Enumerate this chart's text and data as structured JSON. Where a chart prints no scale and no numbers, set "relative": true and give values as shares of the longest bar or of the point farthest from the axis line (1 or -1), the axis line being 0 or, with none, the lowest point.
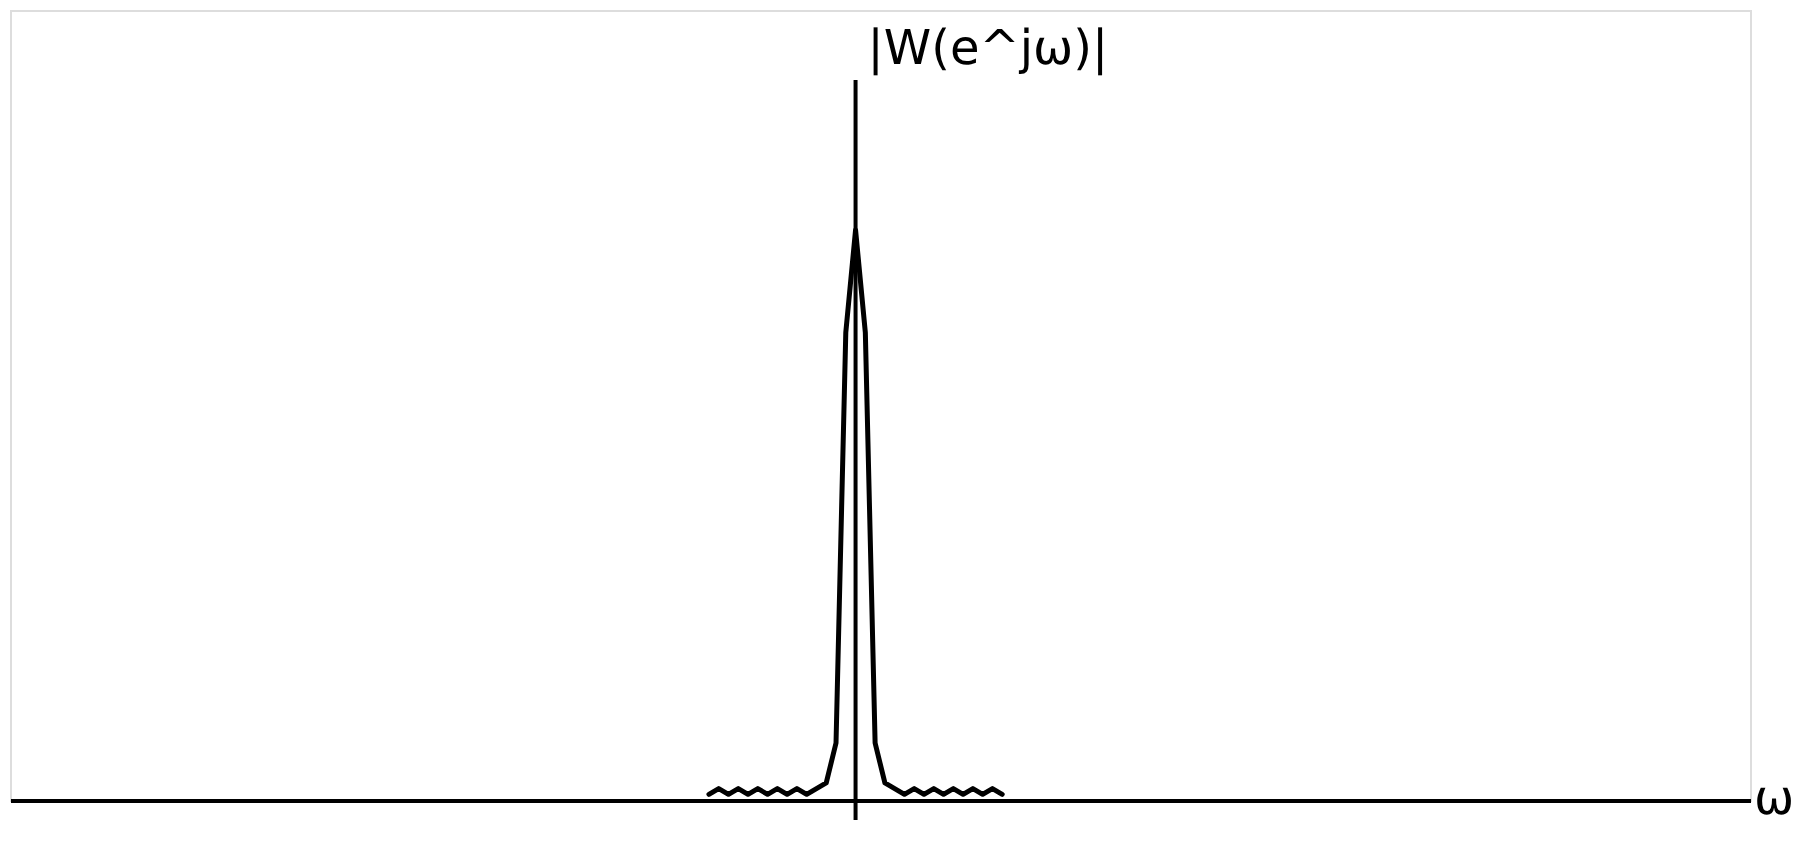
{
  "chart_data": {
    "type": "line",
    "relative": true,
    "xlabel": "ω",
    "ylabel": "|W(e^jω)|",
    "grid": false,
    "marker": "none",
    "line_style": "solid",
    "categories": [
      null,
      null,
      null,
      null,
      null,
      null,
      null,
      null,
      null,
      null,
      null,
      null,
      null,
      null,
      null,
      null,
      null,
      null,
      null,
      null,
      null,
      null,
      null,
      null,
      null,
      null,
      null,
      null,
      null,
      null,
      null,
      null,
      null,
      null,
      null,
      null,
      null,
      null,
      null,
      null,
      null,
      null,
      null,
      null,
      null,
      null,
      null,
      null,
      null,
      null,
      null,
      null,
      null,
      null,
      null,
      null,
      null,
      null,
      null,
      null,
      null,
      null,
      null,
      null,
      null,
      null,
      null,
      null,
      null,
      null,
      null,
      null,
      null,
      null,
      null,
      null,
      null,
      null,
      null,
      null,
      null,
      null,
      null,
      null,
      null,
      null,
      null,
      null,
      null,
      null,
      null,
      null,
      null,
      null,
      null,
      null,
      null,
      null,
      null,
      null,
      null,
      null,
      null,
      null,
      null,
      null,
      null,
      null,
      null,
      null,
      null,
      null,
      null,
      null,
      null,
      null,
      null,
      null,
      null,
      null,
      null,
      null,
      null,
      null,
      null,
      null,
      null,
      null,
      null,
      null,
      null,
      null,
      null,
      null,
      null,
      null,
      null,
      null,
      null,
      null,
      null,
      null,
      null,
      null,
      null,
      null,
      null,
      null,
      null,
      null,
      null,
      null,
      null,
      null,
      null,
      null,
      null,
      null,
      null,
      null,
      null,
      null,
      null,
      null,
      null,
      null,
      null,
      null,
      null,
      null,
      null,
      null,
      null,
      null,
      null,
      null,
      null,
      null
    ],
    "series": [
      {
        "color": "#000000",
        "values": [
          null,
          null,
          null,
          null,
          null,
          null,
          null,
          null,
          null,
          null,
          null,
          null,
          null,
          null,
          null,
          null,
          null,
          null,
          null,
          null,
          null,
          null,
          null,
          null,
          null,
          null,
          null,
          null,
          null,
          null,
          null,
          null,
          null,
          null,
          null,
          null,
          null,
          null,
          null,
          null,
          null,
          null,
          null,
          null,
          null,
          null,
          null,
          null,
          null,
          null,
          null,
          null,
          null,
          null,
          null,
          null,
          null,
          null,
          null,
          null,
          null,
          null,
          null,
          null,
          null,
          null,
          null,
          null,
          null,
          null,
          null,
          0.01,
          0.02,
          0.01,
          0.02,
          0.01,
          0.02,
          0.01,
          0.02,
          0.01,
          0.02,
          0.01,
          0.02,
          0.03,
          0.1,
          0.82,
          1,
          0.82,
          0.1,
          0.03,
          0.02,
          0.01,
          0.02,
          0.01,
          0.02,
          0.01,
          0.02,
          0.01,
          0.02,
          0.01,
          0.02,
          0.01,
          null,
          null,
          null,
          null,
          null,
          null,
          null,
          null,
          null,
          null,
          null,
          null,
          null,
          null,
          null,
          null,
          null,
          null,
          null,
          null,
          null,
          null,
          null,
          null,
          null,
          null,
          null,
          null,
          null,
          null,
          null,
          null,
          null,
          null,
          null,
          null,
          null,
          null,
          null,
          null,
          null,
          null,
          null,
          null,
          null,
          null,
          null,
          null,
          null,
          null,
          null,
          null,
          null,
          null,
          null,
          null,
          null,
          null,
          null,
          null,
          null,
          null,
          null,
          null,
          null,
          null,
          null,
          null,
          null,
          null,
          null,
          null,
          null,
          null,
          null,
          null
        ]
      }
    ]
  }
}
